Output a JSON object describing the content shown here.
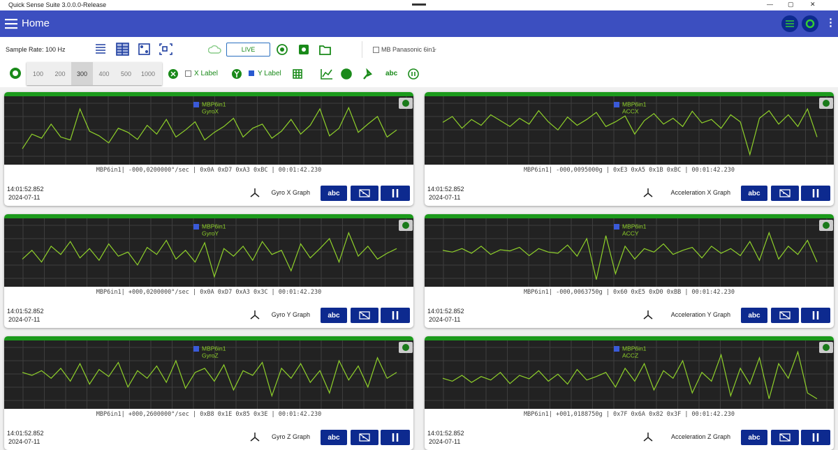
{
  "title_bar": {
    "title": "Quick Sense Suite 3.0.0.0-Release"
  },
  "header": {
    "title": "Home"
  },
  "toolbar": {
    "sample_rate": "Sample Rate: 100 Hz",
    "live": "LIVE",
    "device": "MB Panasonic 6in1",
    "rates": [
      "100",
      "200",
      "300",
      "400",
      "500",
      "1000"
    ],
    "x_label": "X Label",
    "y_label": "Y Label",
    "abc": "abc"
  },
  "panels": [
    {
      "legend_device": "MBP6in1",
      "legend_channel": "GyroX",
      "status": "MBP6in1| -000,0200000°/sec | 0x0A 0xD7 0xA3 0xBC | 00:01:42.230",
      "time": "14:01:52.852",
      "date": "2024-07-11",
      "name": "Gyro X Graph",
      "action": "abc",
      "ylim": [
        0,
        100
      ],
      "values": [
        20,
        45,
        38,
        62,
        40,
        35,
        88,
        50,
        42,
        30,
        55,
        48,
        36,
        60,
        45,
        70,
        40,
        52,
        66,
        35,
        48,
        58,
        72,
        40,
        55,
        62,
        38,
        50,
        70,
        45,
        60,
        88,
        42,
        55,
        90,
        48,
        62,
        75,
        40,
        52
      ]
    },
    {
      "legend_device": "MBP6in1",
      "legend_channel": "ACCX",
      "status": "MBP6in1| -000,0095000g | 0xE3 0xA5 0x1B 0xBC | 00:01:42.230",
      "time": "14:01:52.852",
      "date": "2024-07-11",
      "name": "Acceleration X Graph",
      "action": "abc",
      "ylim": [
        0,
        100
      ],
      "values": [
        65,
        75,
        55,
        70,
        60,
        78,
        68,
        58,
        72,
        62,
        85,
        66,
        52,
        74,
        60,
        70,
        82,
        58,
        66,
        76,
        45,
        68,
        80,
        62,
        72,
        58,
        84,
        64,
        70,
        55,
        78,
        66,
        10,
        72,
        85,
        62,
        78,
        58,
        88,
        40
      ]
    },
    {
      "legend_device": "MBP6in1",
      "legend_channel": "GyroY",
      "status": "MBP6in1| +000,0200000°/sec | 0x0A 0xD7 0xA3 0x3C | 00:01:42.230",
      "time": "14:01:52.852",
      "date": "2024-07-11",
      "name": "Gyro Y Graph",
      "action": "abc",
      "ylim": [
        0,
        100
      ],
      "values": [
        40,
        55,
        35,
        62,
        48,
        70,
        42,
        58,
        38,
        66,
        45,
        52,
        30,
        60,
        48,
        72,
        40,
        55,
        35,
        68,
        10,
        58,
        45,
        62,
        38,
        70,
        48,
        55,
        20,
        66,
        42,
        58,
        75,
        35,
        85,
        45,
        62,
        40,
        50,
        58
      ]
    },
    {
      "legend_device": "MBP6in1",
      "legend_channel": "ACCY",
      "status": "MBP6in1| -000,0063750g | 0x60 0xE5 0xD0 0xBB | 00:01:42.230",
      "time": "14:01:52.852",
      "date": "2024-07-11",
      "name": "Acceleration Y Graph",
      "action": "abc",
      "ylim": [
        0,
        100
      ],
      "values": [
        55,
        52,
        58,
        50,
        62,
        48,
        56,
        54,
        60,
        46,
        58,
        52,
        50,
        64,
        45,
        75,
        5,
        80,
        15,
        62,
        40,
        58,
        52,
        66,
        48,
        55,
        60,
        42,
        62,
        50,
        58,
        46,
        70,
        38,
        85,
        40,
        62,
        48,
        72,
        35
      ]
    },
    {
      "legend_device": "MBP6in1",
      "legend_channel": "GyroZ",
      "status": "MBP6in1| +000,2600000°/sec | 0xB8 0x1E 0x85 0x3E | 00:01:42.230",
      "time": "14:01:52.852",
      "date": "2024-07-11",
      "name": "Gyro Z Graph",
      "action": "abc",
      "ylim": [
        0,
        100
      ],
      "values": [
        55,
        50,
        58,
        45,
        62,
        40,
        70,
        35,
        60,
        48,
        72,
        30,
        58,
        45,
        66,
        38,
        75,
        28,
        55,
        62,
        40,
        68,
        25,
        58,
        50,
        72,
        15,
        62,
        45,
        70,
        38,
        58,
        20,
        75,
        42,
        66,
        30,
        80,
        45,
        55
      ]
    },
    {
      "legend_device": "MBP6in1",
      "legend_channel": "ACCZ",
      "status": "MBP6in1| +001,0188750g | 0x7F 0x6A 0x82 0x3F | 00:01:42.230",
      "time": "14:01:52.852",
      "date": "2024-07-11",
      "name": "Acceleration Z Graph",
      "action": "abc",
      "ylim": [
        0,
        100
      ],
      "values": [
        45,
        40,
        50,
        38,
        48,
        42,
        55,
        36,
        50,
        44,
        58,
        40,
        52,
        35,
        60,
        42,
        48,
        55,
        30,
        62,
        40,
        70,
        25,
        58,
        45,
        75,
        20,
        55,
        40,
        85,
        15,
        62,
        35,
        80,
        10,
        70,
        45,
        90,
        20,
        10
      ]
    }
  ]
}
